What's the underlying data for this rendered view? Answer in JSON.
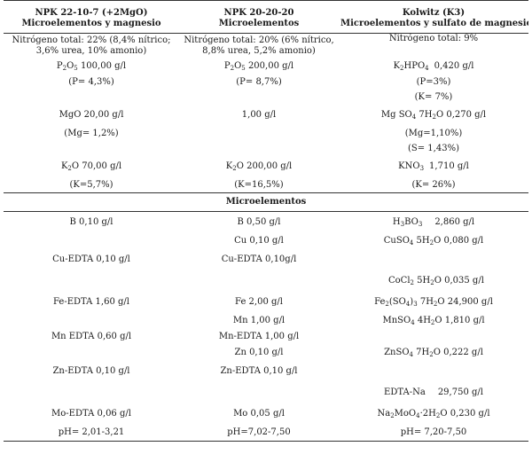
{
  "header": {
    "col1_line1": "NPK 22-10-7 (+2MgO)",
    "col1_line2": "Microelementos  y magnesio",
    "col2_line1": "NPK 20-20-20",
    "col2_line2": "Microelementos",
    "col3_line1": "Kolwitz (K3)",
    "col3_line2": "Microelementos y sulfato de magnesio"
  },
  "macro": {
    "nitrogen": {
      "c1": "Nitrógeno total: 22% (8,4% nítrico; 3,6% urea, 10% amonio)",
      "c2": "Nitrógeno total: 20% (6% nítrico, 8,8% urea, 5,2% amonio)",
      "c3": "Nitrógeno total: 9%"
    },
    "p_c1_a": "P",
    "p_c1_sub1": "2",
    "p_c1_b": "O",
    "p_c1_sub2": "5",
    "p_c1_c": " 100,00 g/l",
    "p_c2_a": "P",
    "p_c2_sub1": "2",
    "p_c2_b": "O",
    "p_c2_sub2": "5",
    "p_c2_c": " 200,00 g/l",
    "p_c3_a": "K",
    "p_c3_sub1": "2",
    "p_c3_b": "HPO",
    "p_c3_sub2": "4",
    "p_c3_c": "0,420 g/l",
    "p_c1_pct": "(P= 4,3%)",
    "p_c2_pct": "(P= 8,7%)",
    "p_c3_pct": "(P=3%)",
    "k_c3_pct1": "(K= 7%)",
    "mg_c1": "MgO 20,00 g/l",
    "mg_c2": "1,00 g/l",
    "mg_c3_a": "Mg SO",
    "mg_c3_sub1": "4",
    "mg_c3_b": " 7H",
    "mg_c3_sub2": "2",
    "mg_c3_c": "O 0,270 g/l",
    "mg_c1_pct": "(Mg= 1,2%)",
    "mg_c3_pct": "(Mg=1,10%)",
    "s_c3_pct": "(S= 1,43%)",
    "k_c1_a": "K",
    "k_c1_sub": "2",
    "k_c1_b": "O 70,00 g/l",
    "k_c2_a": "K",
    "k_c2_sub": "2",
    "k_c2_b": "O 200,00 g/l",
    "k_c3_a": "KNO",
    "k_c3_sub": "3",
    "k_c3_b": "1,710 g/l",
    "k_c1_pct": "(K=5,7%)",
    "k_c2_pct": "(K=16,5%)",
    "k_c3_pct": "(K= 26%)"
  },
  "micro_title": "Microelementos",
  "micro": {
    "b_c1": "B 0,10 g/l",
    "b_c2": "B 0,50 g/l",
    "b_c3_a": "H",
    "b_c3_sub1": "3",
    "b_c3_b": "BO",
    "b_c3_sub2": "3",
    "b_c3_c": "2,860 g/l",
    "cu_c2": "Cu 0,10 g/l",
    "cu_c3_a": "CuSO",
    "cu_c3_sub1": "4",
    "cu_c3_b": " 5H",
    "cu_c3_sub2": "2",
    "cu_c3_c": "O  0,080 g/l",
    "cuedta_c1": "Cu-EDTA 0,10 g/l",
    "cuedta_c2": "Cu-EDTA 0,10g/l",
    "co_c3_a": "CoCl",
    "co_c3_sub1": "2",
    "co_c3_b": " 5H",
    "co_c3_sub2": "2",
    "co_c3_c": "O  0,035 g/l",
    "fe_c1": "Fe-EDTA 1,60 g/l",
    "fe_c2": "Fe 2,00 g/l",
    "fe_c3_a": "Fe",
    "fe_c3_sub1": "2",
    "fe_c3_b": "(SO",
    "fe_c3_sub2": "4",
    "fe_c3_c": ")",
    "fe_c3_sub3": "3",
    "fe_c3_d": " 7H",
    "fe_c3_sub4": "2",
    "fe_c3_e": "O  24,900 g/l",
    "mn_c2": "Mn  1,00 g/l",
    "mn_c3_a": "MnSO",
    "mn_c3_sub1": "4",
    "mn_c3_b": " 4H",
    "mn_c3_sub2": "2",
    "mn_c3_c": "O  1,810 g/l",
    "mnedta_c1": "Mn EDTA  0,60 g/l",
    "mnedta_c2": "Mn-EDTA 1,00 g/l",
    "zn_c2": "Zn 0,10 g/l",
    "zn_c3_a": "ZnSO",
    "zn_c3_sub1": "4",
    "zn_c3_b": " 7H",
    "zn_c3_sub2": "2",
    "zn_c3_c": "O  0,222 g/l",
    "znedta_c1": "Zn-EDTA  0,10 g/l",
    "znedta_c2": "Zn-EDTA 0,10 g/l",
    "edtana_c3_a": "EDTA-Na",
    "edtana_c3_b": "29,750 g/l",
    "mo_c1": "Mo-EDTA  0,06 g/l",
    "mo_c2": "Mo 0,05 g/l",
    "mo_c3_a": "Na",
    "mo_c3_sub1": "2",
    "mo_c3_b": "MoO",
    "mo_c3_sub2": "4",
    "mo_c3_c": "2H",
    "mo_c3_sub3": "2",
    "mo_c3_d": "O  0,230 g/l",
    "ph_c1": "pH= 2,01-3,21",
    "ph_c2": "pH=7,02-7,50",
    "ph_c3": "pH= 7,20-7,50"
  }
}
